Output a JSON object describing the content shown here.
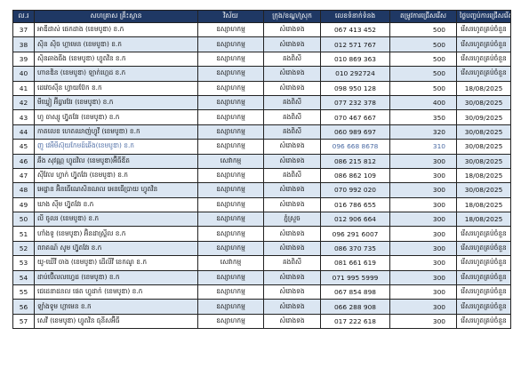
{
  "table": {
    "headers": {
      "no": "ល.រ",
      "name": "សហគ្រាស គ្រឹះស្ថាន",
      "sector": "វិស័យ",
      "district": "ក្រុង/ខណ្ឌ/ស្រុក",
      "phone": "លេខទំនាក់ទំនង",
      "count": "តម្រូវការជ្រើសរើស",
      "date": "ថ្ងៃបញ្ចប់ការជ្រើសរើស"
    },
    "rows": [
      {
        "no": "37",
        "name": "អាឌីដាស់ ផេកដាង (ខេមបូឌា) ខ.ក",
        "sector": "ឧស្សាហកម្ម",
        "district": "សំរោងទង",
        "phone": "067 413 452",
        "count": "500",
        "date": "រើសរហូតគ្រប់ចំនួន"
      },
      {
        "no": "38",
        "name": "ស៊ិន ស៊ិច ហ្គាមេន (ខេមបូឌា) ខ.ក",
        "sector": "ឧស្សាហកម្ម",
        "district": "សំរោងទង",
        "phone": "012 571 767",
        "count": "500",
        "date": "រើសរហូតគ្រប់ចំនួន"
      },
      {
        "no": "39",
        "name": "ស៊ិនឆាងធីង (ខេមបូឌា) ហ្វូតវិន ខ.ក",
        "sector": "ឧស្សាហកម្ម",
        "district": "គងពិសី",
        "phone": "010 869 363",
        "count": "500",
        "date": "រើសរហូតគ្រប់ចំនួន"
      },
      {
        "no": "40",
        "name": "ហានឌិន (ខេមបូឌា) ឡាក់ហ្គេដ ខ.ក",
        "sector": "ឧស្សាហកម្ម",
        "district": "សំរោងទង",
        "phone": "010 292724",
        "count": "500",
        "date": "រើសរហូតគ្រប់ចំនួន"
      },
      {
        "no": "41",
        "name": "ដេវេចសុីន ហ្វាយប៊ែក ខ.ក",
        "sector": "ឧស្សាហកម្ម",
        "district": "សំរោងទង",
        "phone": "098 950 128",
        "count": "500",
        "date": "18/08/2025"
      },
      {
        "no": "42",
        "name": "មីឃ្វៀ អ៊ីធ្វារវែរ (ខេមបូឌា) ខ.ក",
        "sector": "ឧស្សាហកម្ម",
        "district": "គងពិសី",
        "phone": "077 232 378",
        "count": "400",
        "date": "30/08/2025"
      },
      {
        "no": "43",
        "name": "ហូ ចាស្សូ ហ្វ៊ូតវែរ (ខេមបូឌា) ខ.ក",
        "sector": "ឧស្សាហកម្ម",
        "district": "គងពិសី",
        "phone": "070 467 667",
        "count": "350",
        "date": "30/09/2025"
      },
      {
        "no": "44",
        "name": "កាតលេខ ហេតឈាញ់ហ្វូវី (ខេមបូឌា) ខ.ក",
        "sector": "ឧស្សាហកម្ម",
        "district": "គងពិសី",
        "phone": "060 989 697",
        "count": "320",
        "date": "30/08/2025"
      },
      {
        "no": "45",
        "name": "ញូ វេអឹមីស៊ុយកែមដ៍ឆើង(ខេមបូឌា) ខ.ក",
        "sector": "ឧស្សាហកម្ម",
        "district": "សំរោងទង",
        "phone": "096 668 8678",
        "count": "310",
        "date": "30/08/2025",
        "highlight": true
      },
      {
        "no": "46",
        "name": "ឆឹង សុវណ្ណ ហ្វូដវិល (ខេមបូឌា)អ៊ីធីឌីត",
        "sector": "សេវាកម្ម",
        "district": "សំរោងទង",
        "phone": "086 215 812",
        "count": "300",
        "date": "30/08/2025"
      },
      {
        "no": "47",
        "name": "ស៊ីវែល ហ្វាក់ ហ្វ៊ូតវែរ (ខេមបូឌា) ខ.ក",
        "sector": "ឧស្សាហកម្ម",
        "district": "គងពិសី",
        "phone": "086 862 109",
        "count": "300",
        "date": "18/08/2025"
      },
      {
        "no": "48",
        "name": "អេដ្ឋាន អ៊ិនធើណេសិនណល អេនធើប្រាយ ហ្វូតវិន",
        "sector": "ឧស្សាហកម្ម",
        "district": "សំរោងទង",
        "phone": "070 992 020",
        "count": "300",
        "date": "30/08/2025"
      },
      {
        "no": "49",
        "name": "ឃាង ស៊ីម ហ្វ៊ូតវែរ ខ.ក",
        "sector": "ឧស្សាហកម្ម",
        "district": "សំរោងទង",
        "phone": "016 786 655",
        "count": "300",
        "date": "18/08/2025"
      },
      {
        "no": "50",
        "name": "លី ចូលរ (ខេមបូឌា) ខ.ក",
        "sector": "ឧស្សាហកម្ម",
        "district": "ភ្នំស្រួច",
        "phone": "012 906 664",
        "count": "300",
        "date": "18/08/2025"
      },
      {
        "no": "51",
        "name": "ហាំងទូ (ខេមបូឌា) អ៊ិនដាស្ទ្រីល ខ.ក",
        "sector": "ឧស្សាហកម្ម",
        "district": "សំរោងទង",
        "phone": "096 291 6007",
        "count": "300",
        "date": "រើសរហូតគ្រប់ចំនួន"
      },
      {
        "no": "52",
        "name": "ពរាគណ៍ សូម ហ្វ៊ូតវែរ ខ.ក",
        "sector": "ឧស្សាហកម្ម",
        "district": "សំរោងទង",
        "phone": "086 370 735",
        "count": "300",
        "date": "រើសរហូតគ្រប់ចំនួន"
      },
      {
        "no": "53",
        "name": "យូ-ឃើវី ចាង (ខេមបូឌា) ដើលីវី ខេកណូ ខ.ក",
        "sector": "សេវាកម្ម",
        "district": "គងពិសី",
        "phone": "081 661 619",
        "count": "300",
        "date": "រើសរហូតគ្រប់ចំនួន"
      },
      {
        "no": "54",
        "name": "ដាប់ប៊ើលលហ្វេដ (ខេមបូឌា) ខ.ក",
        "sector": "ឧស្សាហកម្ម",
        "district": "សំរោងទង",
        "phone": "071 995 5999",
        "count": "300",
        "date": "រើសរហូតគ្រប់ចំនួន"
      },
      {
        "no": "55",
        "name": "ជេដេនាដនល ផេត ហ្វូដាក់ (ខេមបូឌា) ខ.ក",
        "sector": "ឧស្សាហកម្ម",
        "district": "សំរោងទង",
        "phone": "067 854 898",
        "count": "300",
        "date": "រើសរហូតគ្រប់ចំនួន"
      },
      {
        "no": "56",
        "name": "ឡាំងទូម ហ្គាមេន ខ.ក",
        "sector": "ឧស្សាហកម្ម",
        "district": "សំរោងទង",
        "phone": "066 288 908",
        "count": "300",
        "date": "រើសរហូតគ្រប់ចំនួន"
      },
      {
        "no": "57",
        "name": "សេវី (ខេមបូឌា) ហ្វូតវិន ធុនីសអ៊ីធី",
        "sector": "ឧស្សាហកម្ម",
        "district": "សំរោងទង",
        "phone": "017 222 618",
        "count": "300",
        "date": "រើសរហូតគ្រប់ចំនួន"
      }
    ]
  }
}
